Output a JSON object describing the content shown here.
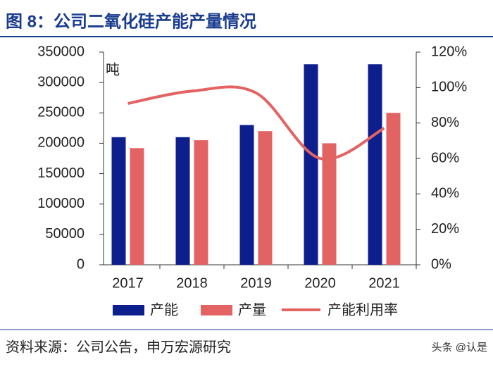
{
  "header": {
    "title": "图 8：公司二氧化硅产能产量情况"
  },
  "chart_data": {
    "type": "bar",
    "unit_label": "吨",
    "categories": [
      "2017",
      "2018",
      "2019",
      "2020",
      "2021"
    ],
    "series": [
      {
        "name": "产能",
        "color": "#0c1f8c",
        "values": [
          210000,
          210000,
          230000,
          330000,
          330000
        ]
      },
      {
        "name": "产量",
        "color": "#e36363",
        "values": [
          192000,
          205000,
          220000,
          200000,
          250000
        ]
      },
      {
        "name": "产能利用率",
        "color": "#e36363",
        "axis": "y2",
        "line": true,
        "values": [
          91,
          98,
          97,
          60,
          77
        ]
      }
    ],
    "ylim": [
      0,
      350000
    ],
    "yticks": [
      0,
      50000,
      100000,
      150000,
      200000,
      250000,
      300000,
      350000
    ],
    "y2lim": [
      0,
      120
    ],
    "y2ticks": [
      {
        "value": 0,
        "label": "0%"
      },
      {
        "value": 20,
        "label": "20%"
      },
      {
        "value": 40,
        "label": "40%"
      },
      {
        "value": 60,
        "label": "60%"
      },
      {
        "value": 80,
        "label": "80%"
      },
      {
        "value": 100,
        "label": "100%"
      },
      {
        "value": 120,
        "label": "120%"
      }
    ]
  },
  "footer": {
    "source": "资料来源：公司公告，申万宏源研究",
    "watermark": "头条 @认是"
  }
}
